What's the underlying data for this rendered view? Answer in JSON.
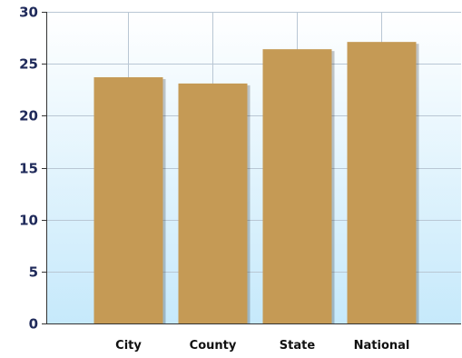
{
  "chart_data": {
    "type": "bar",
    "categories": [
      "City",
      "County",
      "State",
      "National"
    ],
    "values": [
      23.7,
      23.1,
      26.4,
      27.1
    ],
    "title": "",
    "xlabel": "",
    "ylabel": "",
    "ylim": [
      0,
      30
    ],
    "yticks": [
      "0",
      "5",
      "10",
      "15",
      "20",
      "25",
      "30"
    ],
    "grid": true,
    "legend": "none",
    "bar_color": "#c59a55",
    "background_top": "#ffffff",
    "background_bottom": "#c6e9fb"
  }
}
